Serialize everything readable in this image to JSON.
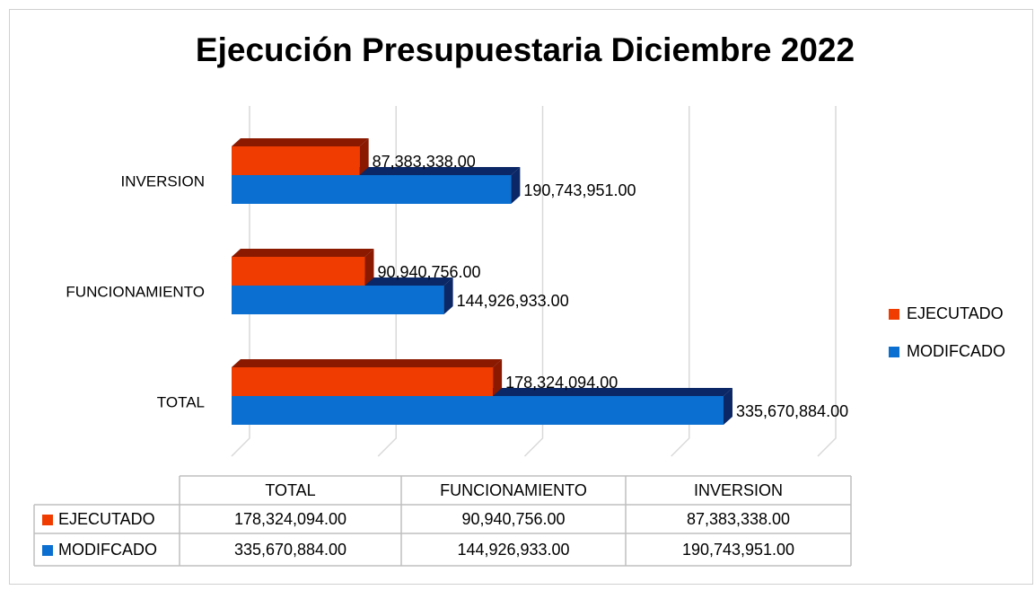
{
  "chart_data": {
    "type": "bar3d_horizontal",
    "title": "Ejecución Presupuestaria Diciembre 2022",
    "categories": [
      "TOTAL",
      "FUNCIONAMIENTO",
      "INVERSION"
    ],
    "series": [
      {
        "name": "EJECUTADO",
        "color": "#f03c00",
        "side_color": "#8a1900",
        "values": [
          178324094,
          90940756,
          87383338
        ],
        "value_labels": [
          "178,324,094.00",
          "90,940,756.00",
          "87,383,338.00"
        ]
      },
      {
        "name": "MODIFCADO",
        "color": "#0a6fd0",
        "side_color": "#0b2766",
        "values": [
          335670884,
          144926933,
          190743951
        ],
        "value_labels": [
          "335,670,884.00",
          "144,926,933.00",
          "190,743,951.00"
        ]
      }
    ],
    "xlim": [
      0,
      400000000
    ],
    "xticks": [
      0,
      100000000,
      200000000,
      300000000,
      400000000
    ],
    "grid": true,
    "legend": "right",
    "data_table": true
  }
}
